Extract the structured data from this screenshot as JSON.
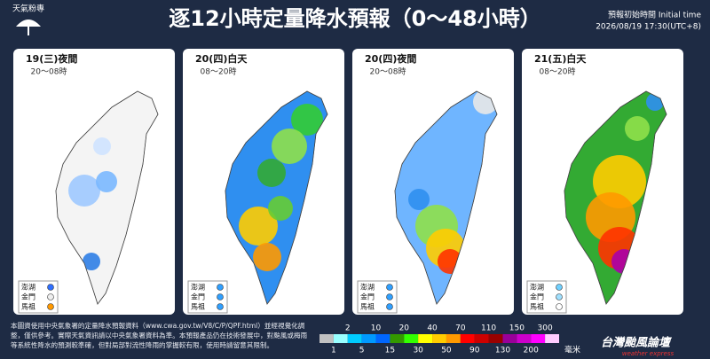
{
  "header": {
    "logo": "天氣粉專",
    "title": "逐12小時定量降水預報（0～48小時）",
    "init_label": "預報初始時間 Initial time",
    "init_time": "2026/08/19  17:30(UTC+8)"
  },
  "panels": [
    {
      "day": "19(三)夜間",
      "hours": "20～08時",
      "islands": [
        "澎湖",
        "金門",
        "馬祖"
      ]
    },
    {
      "day": "20(四)白天",
      "hours": "08～20時",
      "islands": [
        "澎湖",
        "金門",
        "馬祖"
      ]
    },
    {
      "day": "20(四)夜間",
      "hours": "20～08時",
      "islands": [
        "澎湖",
        "金門",
        "馬祖"
      ]
    },
    {
      "day": "21(五)白天",
      "hours": "08～20時",
      "islands": [
        "澎湖",
        "金門",
        "馬祖"
      ]
    }
  ],
  "note": "本圖資使用中央氣象署的定量降水預報資料（www.cwa.gov.tw/V8/C/P/QPF.html）並經視覺化調整，僅供參考。實際天氣資訊請以中央氣象署資料為準。本預報產品仍在技術發展中，對颱風或梅雨等系統性降水的預測較準確，但對局部對流性降雨的掌握較有限，使用時請留意其限制。",
  "legend": {
    "levels": [
      1,
      2,
      5,
      10,
      15,
      20,
      30,
      40,
      50,
      70,
      90,
      110,
      130,
      150,
      200,
      300
    ],
    "unit": "毫米"
  },
  "brand": {
    "name": "台灣颱風論壇",
    "sub": "weather express"
  }
}
